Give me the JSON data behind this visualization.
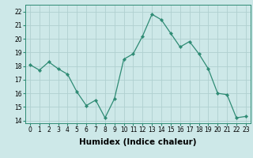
{
  "x": [
    0,
    1,
    2,
    3,
    4,
    5,
    6,
    7,
    8,
    9,
    10,
    11,
    12,
    13,
    14,
    15,
    16,
    17,
    18,
    19,
    20,
    21,
    22,
    23
  ],
  "y": [
    18.1,
    17.7,
    18.3,
    17.8,
    17.4,
    16.1,
    15.1,
    15.5,
    14.2,
    15.6,
    18.5,
    18.9,
    20.2,
    21.8,
    21.4,
    20.4,
    19.4,
    19.8,
    18.9,
    17.8,
    16.0,
    15.9,
    14.2,
    14.3
  ],
  "line_color": "#2e8b74",
  "marker": "D",
  "marker_size": 2.2,
  "bg_color": "#cde8e8",
  "grid_color": "#b0d0d0",
  "xlabel": "Humidex (Indice chaleur)",
  "xlim": [
    -0.5,
    23.5
  ],
  "ylim": [
    13.8,
    22.5
  ],
  "yticks": [
    14,
    15,
    16,
    17,
    18,
    19,
    20,
    21,
    22
  ],
  "xticks": [
    0,
    1,
    2,
    3,
    4,
    5,
    6,
    7,
    8,
    9,
    10,
    11,
    12,
    13,
    14,
    15,
    16,
    17,
    18,
    19,
    20,
    21,
    22,
    23
  ],
  "tick_fontsize": 5.5,
  "xlabel_fontsize": 7.5,
  "spine_color": "#2e8b74",
  "line_width": 0.9
}
